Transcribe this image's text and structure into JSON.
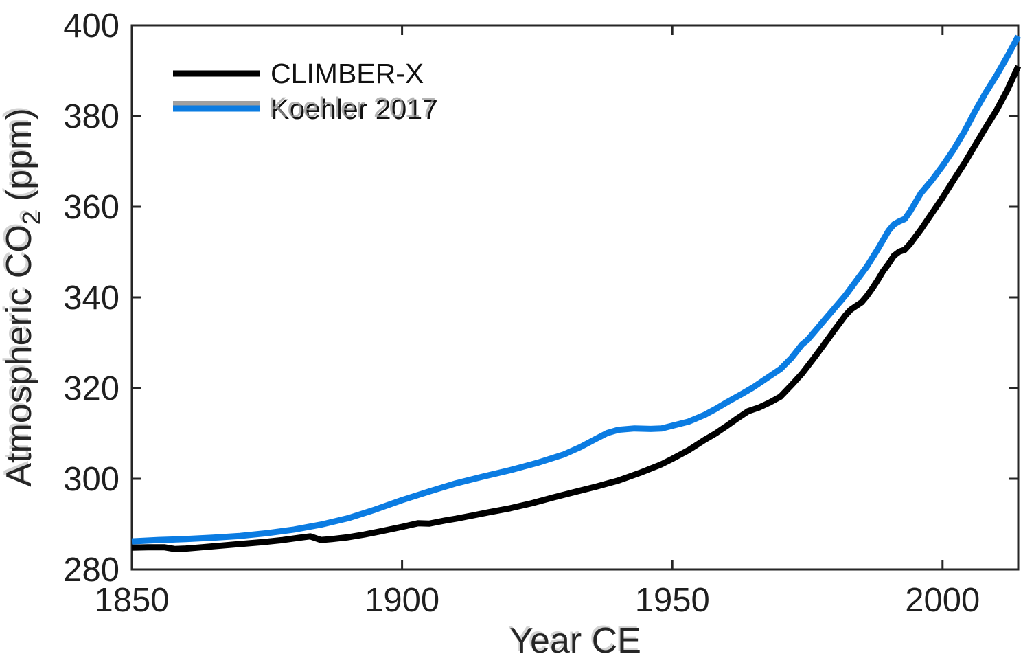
{
  "figure": {
    "background": "#ffffff",
    "axis_color": "#262626",
    "tick_label_color": "#1f1f1f"
  },
  "legend": {
    "position": "top-left-inside",
    "items": [
      {
        "label": "CLIMBER-X",
        "color": "#000000",
        "has_gray_ghost": false
      },
      {
        "label": "Koehler 2017",
        "color": "#0b7ce2",
        "ghost_color": "#a0a0a0",
        "has_gray_ghost": true
      }
    ]
  },
  "chart_data": {
    "type": "line",
    "title": "",
    "xlabel": "Year CE",
    "ylabel_main": "Atmospheric CO",
    "ylabel_sub": "2",
    "ylabel_unit": "(ppm)",
    "xlim": [
      1850,
      2014
    ],
    "ylim": [
      280,
      400
    ],
    "xticks": [
      1850,
      1900,
      1950,
      2000
    ],
    "yticks": [
      280,
      300,
      320,
      340,
      360,
      380,
      400
    ],
    "grid": false,
    "box": true,
    "tick_direction": "in",
    "series": [
      {
        "id": "climber-x",
        "name": "CLIMBER-X",
        "color": "#000000",
        "line_width": 9,
        "x": [
          1850,
          1853,
          1856,
          1858,
          1860,
          1863,
          1866,
          1870,
          1874,
          1878,
          1881,
          1883,
          1885,
          1887,
          1890,
          1893,
          1896,
          1900,
          1903,
          1905,
          1908,
          1910,
          1913,
          1916,
          1920,
          1924,
          1928,
          1932,
          1936,
          1940,
          1944,
          1948,
          1950,
          1953,
          1956,
          1958,
          1960,
          1962,
          1964,
          1966,
          1968,
          1970,
          1972,
          1974,
          1976,
          1978,
          1980,
          1982,
          1983,
          1984,
          1985,
          1986,
          1987,
          1988,
          1989,
          1990,
          1991,
          1992,
          1993,
          1994,
          1996,
          1998,
          2000,
          2002,
          2004,
          2006,
          2008,
          2010,
          2012,
          2014
        ],
        "y": [
          284.8,
          284.9,
          284.9,
          284.5,
          284.6,
          284.9,
          285.2,
          285.6,
          286.0,
          286.5,
          287.0,
          287.3,
          286.5,
          286.7,
          287.1,
          287.7,
          288.4,
          289.4,
          290.2,
          290.1,
          290.8,
          291.2,
          291.9,
          292.6,
          293.5,
          294.6,
          295.9,
          297.1,
          298.3,
          299.6,
          301.3,
          303.2,
          304.4,
          306.3,
          308.6,
          310.0,
          311.6,
          313.3,
          314.9,
          315.7,
          316.8,
          318.1,
          320.6,
          323.2,
          326.3,
          329.5,
          332.8,
          336.0,
          337.3,
          338.1,
          338.9,
          340.3,
          342.0,
          343.8,
          345.8,
          347.4,
          349.2,
          350.1,
          350.5,
          351.8,
          355.0,
          358.5,
          362.0,
          365.8,
          369.5,
          373.5,
          377.5,
          381.3,
          385.8,
          391.0
        ]
      },
      {
        "id": "koehler-2017",
        "name": "Koehler 2017",
        "color": "#0b7ce2",
        "line_width": 9,
        "x": [
          1850,
          1855,
          1860,
          1865,
          1870,
          1875,
          1880,
          1885,
          1890,
          1895,
          1900,
          1905,
          1910,
          1915,
          1920,
          1925,
          1930,
          1933,
          1936,
          1938,
          1940,
          1943,
          1946,
          1948,
          1950,
          1953,
          1956,
          1958,
          1960,
          1963,
          1965,
          1968,
          1970,
          1972,
          1974,
          1975,
          1976,
          1978,
          1980,
          1982,
          1984,
          1986,
          1988,
          1990,
          1991,
          1992,
          1993,
          1994,
          1996,
          1998,
          2000,
          2002,
          2004,
          2006,
          2008,
          2010,
          2012,
          2014
        ],
        "y": [
          286.2,
          286.5,
          286.7,
          287.0,
          287.4,
          288.0,
          288.8,
          289.9,
          291.3,
          293.2,
          295.3,
          297.2,
          299.0,
          300.5,
          301.9,
          303.5,
          305.4,
          307.0,
          308.9,
          310.1,
          310.8,
          311.1,
          311.0,
          311.1,
          311.7,
          312.6,
          314.1,
          315.4,
          316.8,
          318.8,
          320.2,
          322.6,
          324.2,
          326.6,
          329.6,
          330.6,
          332.0,
          334.8,
          337.6,
          340.4,
          343.6,
          346.8,
          350.6,
          354.7,
          356.1,
          356.8,
          357.3,
          359.0,
          363.0,
          365.8,
          369.0,
          372.5,
          376.5,
          381.0,
          385.2,
          389.0,
          393.2,
          397.6
        ]
      }
    ]
  }
}
